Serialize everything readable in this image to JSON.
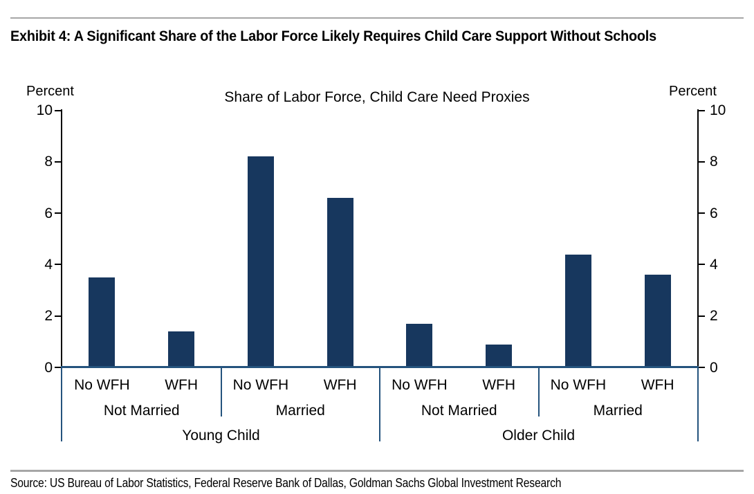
{
  "header": {
    "exhibit_title": "Exhibit 4: A Significant Share of the Labor Force Likely Requires Child Care Support Without Schools"
  },
  "footer": {
    "source": "Source: US Bureau of Labor Statistics, Federal Reserve Bank of Dallas, Goldman Sachs Global Investment Research"
  },
  "chart_data": {
    "type": "bar",
    "title": "Share of Labor Force, Child Care Need Proxies",
    "unit_label_left": "Percent",
    "unit_label_right": "Percent",
    "ylim": [
      0,
      10
    ],
    "yticks": [
      0,
      2,
      4,
      6,
      8,
      10
    ],
    "grid": false,
    "legend": "none",
    "bar_color": "#17375e",
    "line_color": "#24537d",
    "axis_color": "#000000",
    "rule_color": "#a6a6a6",
    "groups": [
      {
        "label": "Young Child",
        "sections": [
          {
            "label": "Not Married",
            "bars": [
              {
                "label": "No WFH",
                "value": 3.5
              },
              {
                "label": "WFH",
                "value": 1.4
              }
            ]
          },
          {
            "label": "Married",
            "bars": [
              {
                "label": "No WFH",
                "value": 8.2
              },
              {
                "label": "WFH",
                "value": 6.6
              }
            ]
          }
        ]
      },
      {
        "label": "Older Child",
        "sections": [
          {
            "label": "Not Married",
            "bars": [
              {
                "label": "No WFH",
                "value": 1.7
              },
              {
                "label": "WFH",
                "value": 0.9
              }
            ]
          },
          {
            "label": "Married",
            "bars": [
              {
                "label": "No WFH",
                "value": 4.4
              },
              {
                "label": "WFH",
                "value": 3.6
              }
            ]
          }
        ]
      }
    ]
  }
}
